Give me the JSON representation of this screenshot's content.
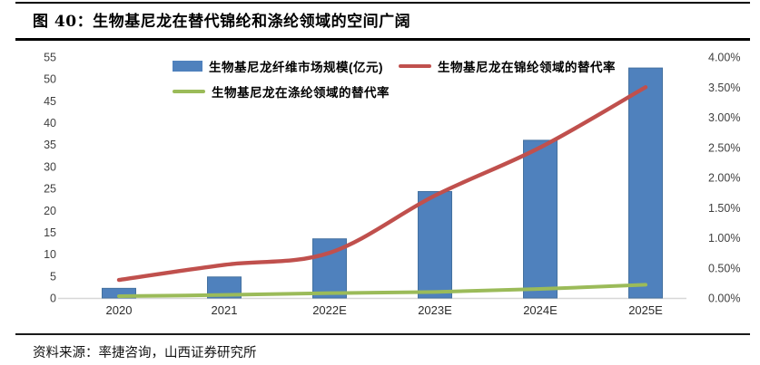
{
  "figure": {
    "title": "图 40：生物基尼龙在替代锦纶和涤纶领域的空间广阔",
    "source": "资料来源：率捷咨询，山西证券研究所"
  },
  "chart_data": {
    "type": "bar",
    "subtype": "combo-bar-line-dual-axis",
    "categories": [
      "2020",
      "2021",
      "2022E",
      "2023E",
      "2024E",
      "2025E"
    ],
    "series": [
      {
        "name": "生物基尼龙纤维市场规模(亿元)",
        "kind": "bar",
        "axis": "left",
        "color": "#4f81bd",
        "border_color": "#44719f",
        "values": [
          2.2,
          4.8,
          13.5,
          24.3,
          36,
          52.5
        ]
      },
      {
        "name": "生物基尼龙在锦纶领域的替代率",
        "kind": "line",
        "axis": "right",
        "color": "#c0504d",
        "values": [
          0.3,
          0.55,
          0.75,
          1.7,
          2.5,
          3.5
        ]
      },
      {
        "name": "生物基尼龙在涤纶领域的替代率",
        "kind": "line",
        "axis": "right",
        "color": "#9bbb59",
        "values": [
          0.03,
          0.05,
          0.08,
          0.1,
          0.15,
          0.22
        ]
      }
    ],
    "left_axis": {
      "min": 0,
      "max": 55,
      "step": 5,
      "ticks": [
        "0",
        "5",
        "10",
        "15",
        "20",
        "25",
        "30",
        "35",
        "40",
        "45",
        "50",
        "55"
      ]
    },
    "right_axis": {
      "min": 0,
      "max": 4,
      "step": 0.5,
      "ticks": [
        "0.00%",
        "0.50%",
        "1.00%",
        "1.50%",
        "2.00%",
        "2.50%",
        "3.00%",
        "3.50%",
        "4.00%"
      ]
    },
    "grid": false,
    "legend_position": "top",
    "baseline_color": "#d7d7d7",
    "tick_color": "#3f3f3f"
  }
}
